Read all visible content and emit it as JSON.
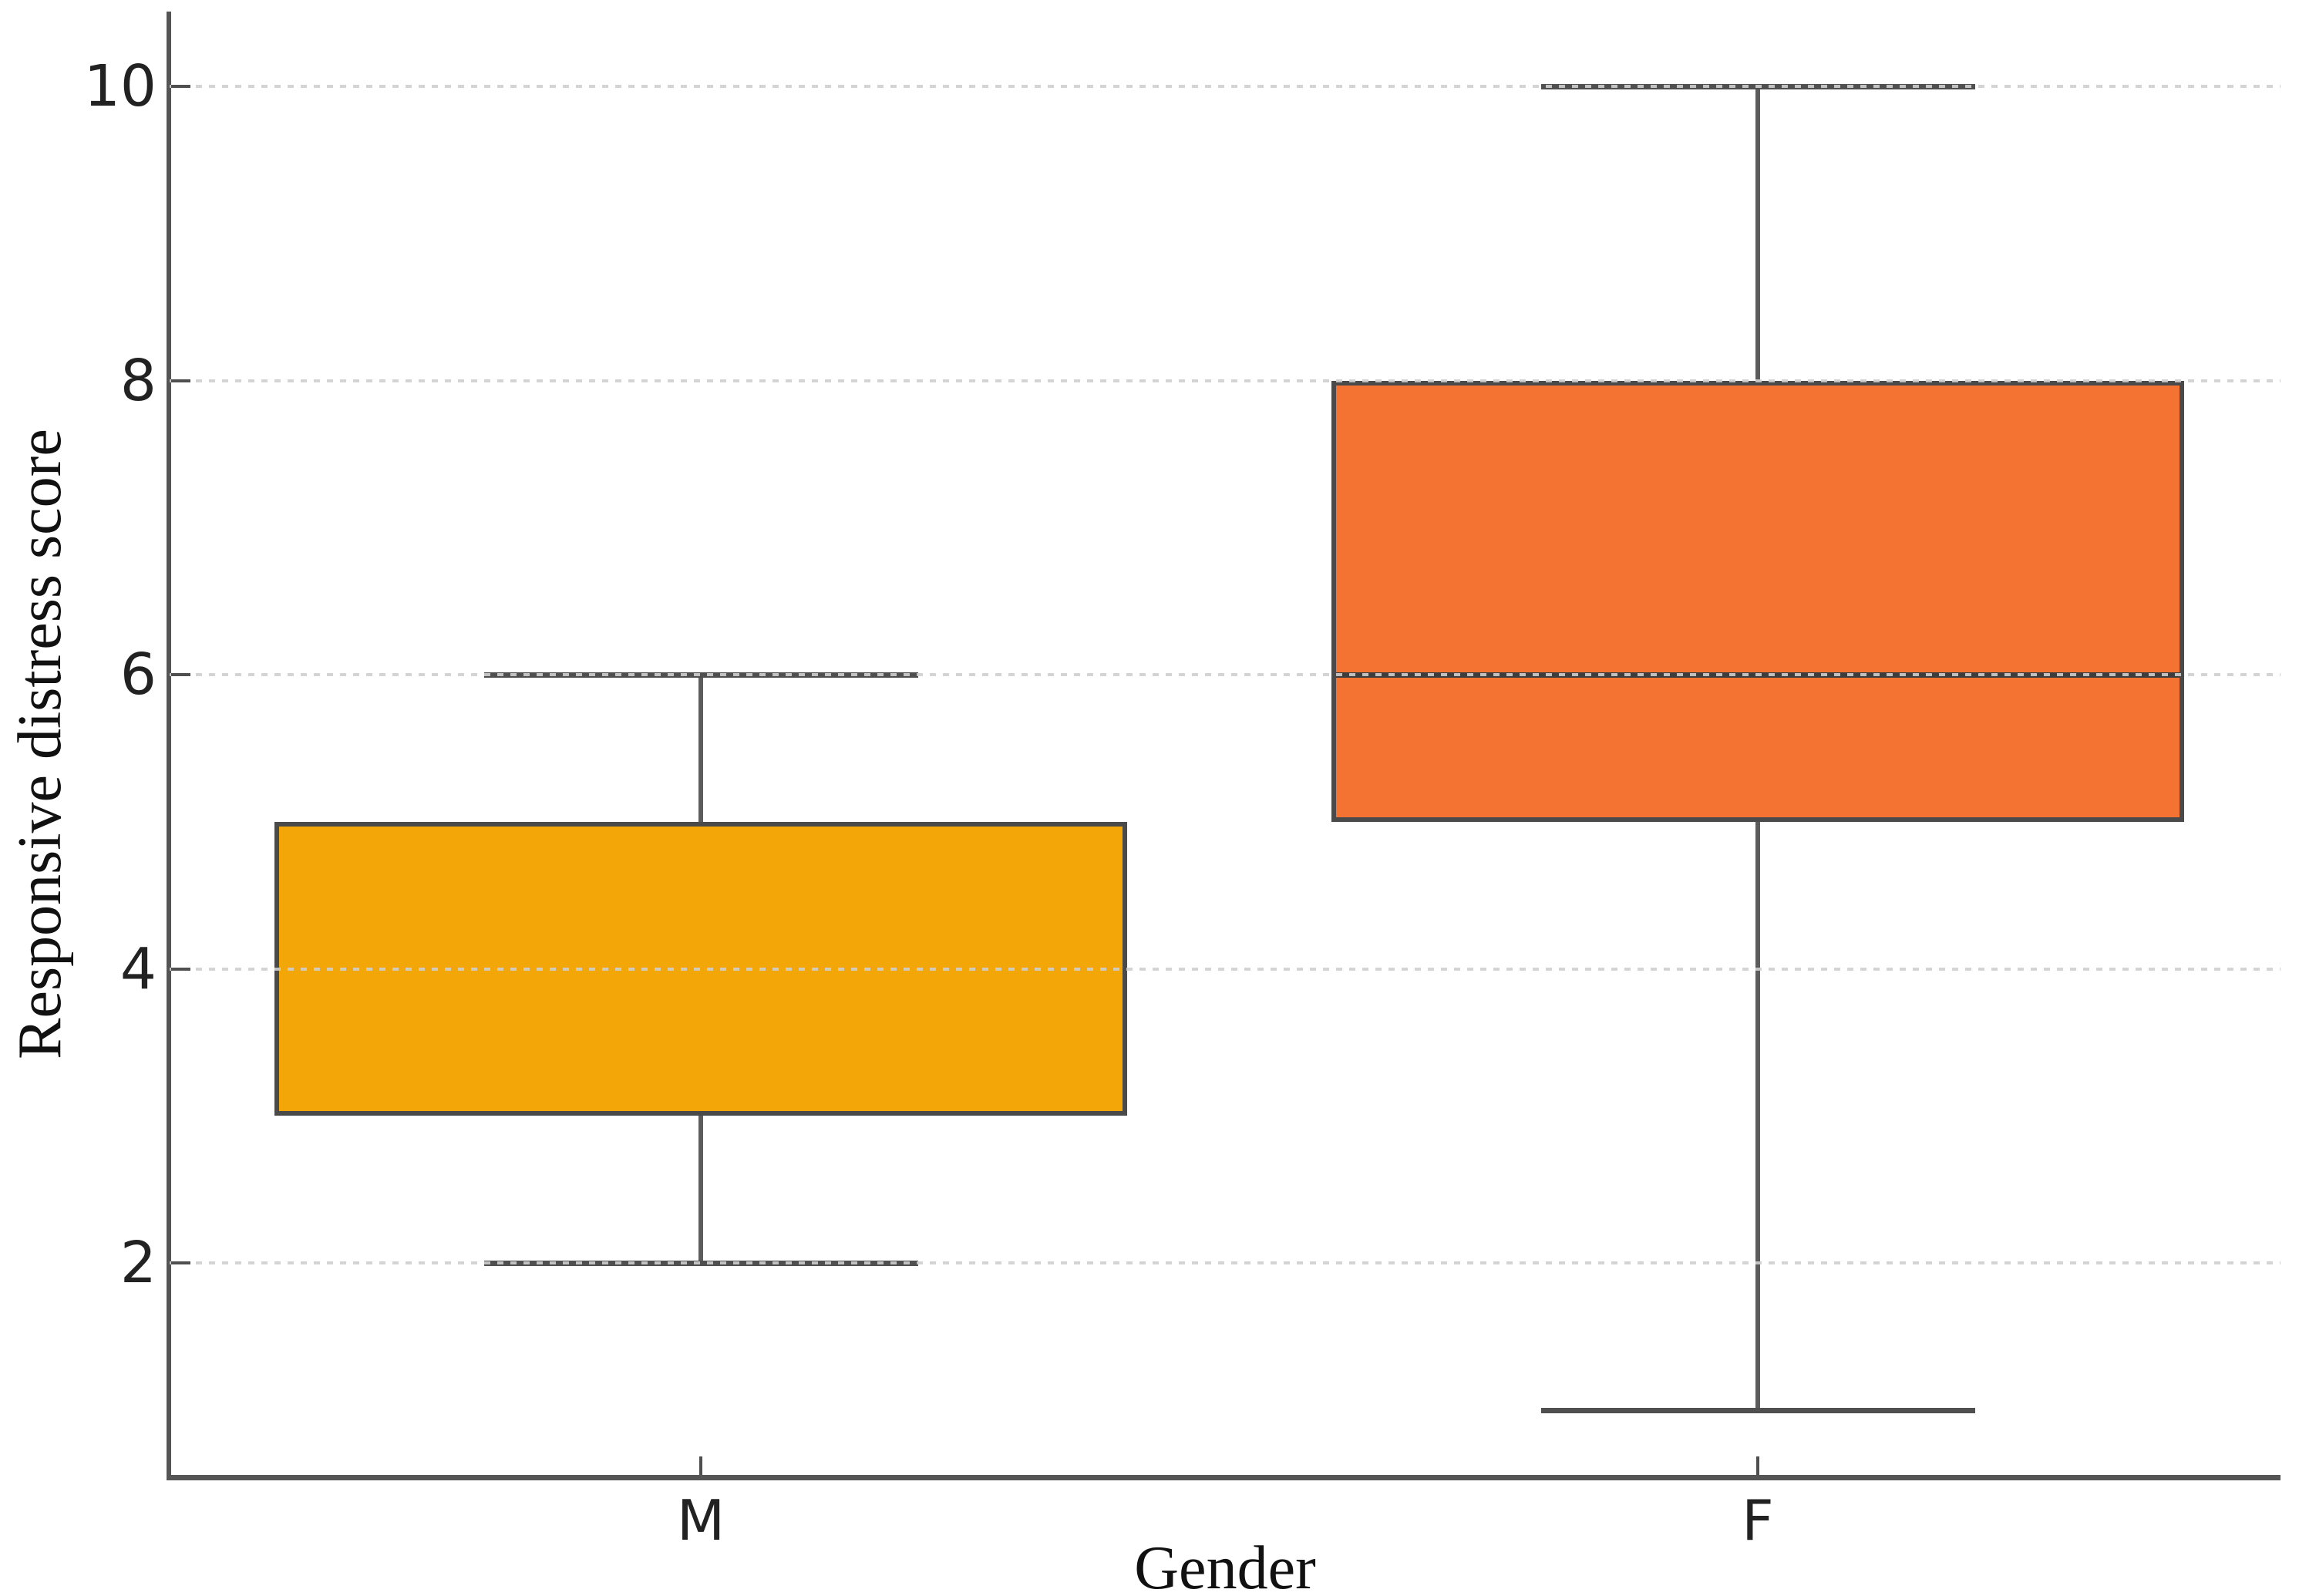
{
  "figure": {
    "background_color": "#ffffff",
    "title": ""
  },
  "chart_data": {
    "type": "boxplot",
    "title": "",
    "xlabel": "Gender",
    "ylabel": "Responsive distress score",
    "categories": [
      "M",
      "F"
    ],
    "yticks": [
      2,
      4,
      6,
      8,
      10
    ],
    "ylim": [
      0.55,
      10.6
    ],
    "grid": "horizontal dotted, drawn over boxes",
    "legend": "none",
    "series": [
      {
        "category": "M",
        "whisker_low": 2,
        "q1": 3,
        "median": null,
        "median_visible": false,
        "q3": 5,
        "whisker_high": 6,
        "fill_color": "#F2A608"
      },
      {
        "category": "F",
        "whisker_low": 1,
        "q1": 5,
        "median": 6,
        "median_visible": true,
        "q3": 8,
        "whisker_high": 10,
        "fill_color": "#F47332"
      }
    ],
    "colors": {
      "box_edge": "#4a4a4a",
      "whisker": "#5c5c5c",
      "median_line": "#3d3d3d",
      "grid_line": "#cfcfcf",
      "axis_spine": "#555555",
      "tick_text": "#222222",
      "label_text": "#111111"
    }
  }
}
